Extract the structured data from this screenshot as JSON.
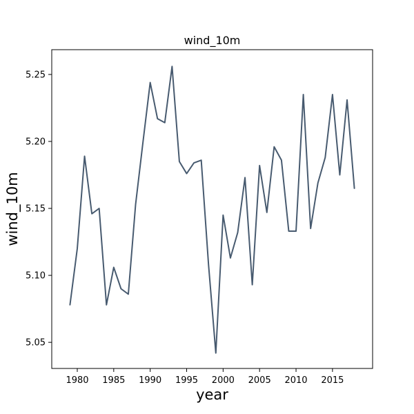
{
  "chart_data": {
    "type": "line",
    "title": "wind_10m",
    "xlabel": "year",
    "ylabel": "wind_10m",
    "xlim": [
      1976.5,
      2020.5
    ],
    "ylim": [
      5.0305,
      5.2685
    ],
    "xticks": [
      1980,
      1985,
      1990,
      1995,
      2000,
      2005,
      2010,
      2015
    ],
    "yticks": [
      5.05,
      5.1,
      5.15,
      5.2,
      5.25
    ],
    "grid": false,
    "legend": "none",
    "line_color": "#475a6f",
    "series": [
      {
        "x": [
          1979,
          1980,
          1981,
          1982,
          1983,
          1984,
          1985,
          1986,
          1987,
          1988,
          1989,
          1990,
          1991,
          1992,
          1993,
          1994,
          1995,
          1996,
          1997,
          1998,
          1999,
          2000,
          2001,
          2002,
          2003,
          2004,
          2005,
          2006,
          2007,
          2008,
          2009,
          2010,
          2011,
          2012,
          2013,
          2014,
          2015,
          2016,
          2017,
          2018
        ],
        "values": [
          5.078,
          5.12,
          5.189,
          5.146,
          5.15,
          5.078,
          5.106,
          5.09,
          5.086,
          5.153,
          5.199,
          5.244,
          5.217,
          5.214,
          5.256,
          5.185,
          5.176,
          5.184,
          5.186,
          5.108,
          5.042,
          5.145,
          5.113,
          5.132,
          5.173,
          5.093,
          5.182,
          5.147,
          5.196,
          5.186,
          5.133,
          5.133,
          5.235,
          5.135,
          5.169,
          5.188,
          5.235,
          5.175,
          5.231,
          5.165
        ]
      }
    ]
  }
}
